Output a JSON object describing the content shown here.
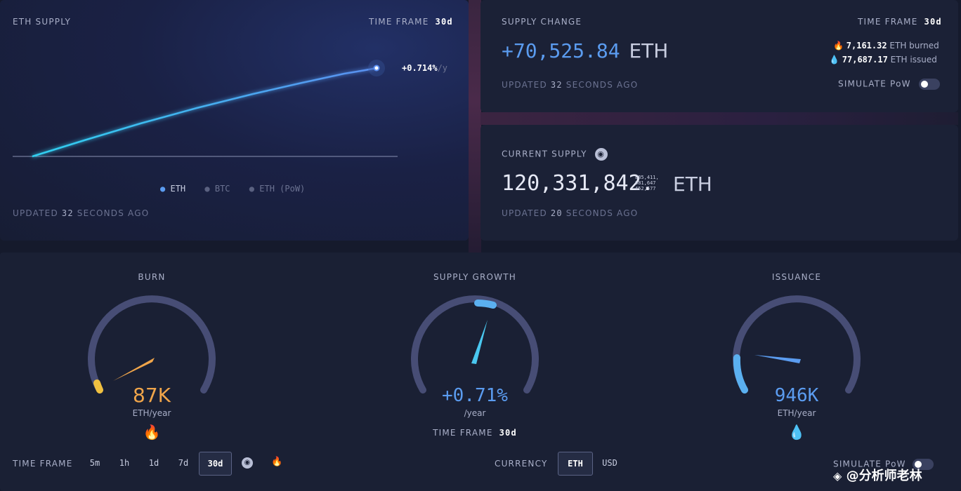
{
  "supply_panel": {
    "title": "ETH SUPPLY",
    "timeframe_label": "TIME FRAME",
    "timeframe_value": "30d",
    "rate_value": "+0.714%",
    "rate_unit": "/y",
    "legend": [
      "ETH",
      "BTC",
      "ETH (PoW)"
    ],
    "updated_prefix": "UPDATED",
    "updated_value": "32",
    "updated_suffix": "SECONDS AGO"
  },
  "change_panel": {
    "title": "SUPPLY CHANGE",
    "timeframe_label": "TIME FRAME",
    "timeframe_value": "30d",
    "amount": "+70,525.84",
    "unit": "ETH",
    "burned_value": "7,161.32",
    "burned_label": "ETH burned",
    "issued_value": "77,687.17",
    "issued_label": "ETH issued",
    "updated_prefix": "UPDATED",
    "updated_value": "32",
    "updated_suffix": "SECONDS AGO",
    "simulate_label": "SIMULATE PoW"
  },
  "current_panel": {
    "title": "CURRENT SUPPLY",
    "amount": "120,331,842.",
    "decimals_1": "885,411,",
    "decimals_2": "081,647",
    "decimals_3": "452,577",
    "unit": "ETH",
    "updated_prefix": "UPDATED",
    "updated_value": "20",
    "updated_suffix": "SECONDS AGO"
  },
  "gauges": {
    "burn": {
      "title": "BURN",
      "value": "87K",
      "unit": "ETH/year",
      "level": 0.28
    },
    "growth": {
      "title": "SUPPLY GROWTH",
      "value": "+0.71%",
      "unit": "/year",
      "level": 0.53,
      "timeframe_label": "TIME FRAME",
      "timeframe_value": "30d"
    },
    "issuance": {
      "title": "ISSUANCE",
      "value": "946K",
      "unit": "ETH/year",
      "level": 0.22
    }
  },
  "bottom_bar": {
    "timeframe_label": "TIME FRAME",
    "timeframes": [
      "5m",
      "1h",
      "1d",
      "7d",
      "30d"
    ],
    "active_timeframe": "30d",
    "currency_label": "CURRENCY",
    "currencies": [
      "ETH",
      "USD"
    ],
    "active_currency": "ETH",
    "simulate_label": "SIMULATE PoW"
  },
  "watermark": "@分析师老林",
  "colors": {
    "accent_blue": "#5b9cf0",
    "burn_orange": "#f0a54a",
    "eth_line": "#29c6f0"
  }
}
